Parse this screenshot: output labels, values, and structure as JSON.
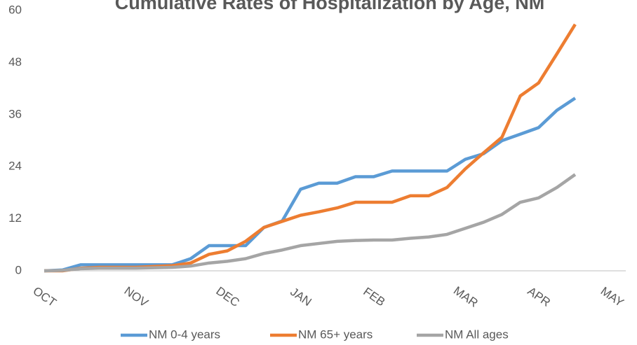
{
  "chart_data": {
    "type": "line",
    "title": "Cumulative Rates of Hospitalization by Age, NM",
    "categories": [
      "OCT",
      null,
      null,
      null,
      null,
      "NOV",
      null,
      null,
      null,
      null,
      "DEC",
      null,
      null,
      null,
      "JAN",
      null,
      null,
      null,
      "FEB",
      null,
      null,
      null,
      null,
      "MAR",
      null,
      null,
      null,
      "APR",
      null,
      null,
      null,
      "MAY"
    ],
    "series": [
      {
        "name": "NM 0-4 years",
        "color": "#5b9bd5",
        "values": [
          0,
          0.2,
          1.4,
          1.4,
          1.4,
          1.4,
          1.4,
          1.4,
          2.8,
          5.8,
          5.8,
          5.8,
          10,
          11.5,
          18.8,
          20.2,
          20.2,
          21.7,
          21.7,
          23,
          23,
          23,
          23,
          25.7,
          27,
          30,
          31.5,
          33,
          37,
          39.8,
          null,
          null
        ]
      },
      {
        "name": "NM 65+ years",
        "color": "#ed7d31",
        "values": [
          0,
          0,
          0.6,
          0.8,
          0.8,
          0.8,
          1,
          1.2,
          1.8,
          3.8,
          4.6,
          6.8,
          10,
          11.4,
          12.8,
          13.6,
          14.5,
          15.8,
          15.8,
          15.8,
          17.3,
          17.3,
          19.2,
          23.5,
          27.2,
          30.8,
          40.3,
          43.3,
          50,
          56.8,
          null,
          null
        ]
      },
      {
        "name": "NM All ages",
        "color": "#a5a5a5",
        "values": [
          0,
          0.1,
          0.5,
          0.6,
          0.6,
          0.6,
          0.7,
          0.8,
          1.1,
          1.8,
          2.2,
          2.8,
          4,
          4.8,
          5.8,
          6.3,
          6.8,
          7,
          7.1,
          7.1,
          7.5,
          7.8,
          8.4,
          9.8,
          11.2,
          13,
          15.8,
          16.8,
          19.2,
          22.2,
          null,
          null
        ]
      }
    ],
    "ylim": [
      0,
      60
    ],
    "yticks": [
      0,
      12,
      24,
      36,
      48,
      60
    ],
    "grid": false,
    "legend": "bottom"
  }
}
